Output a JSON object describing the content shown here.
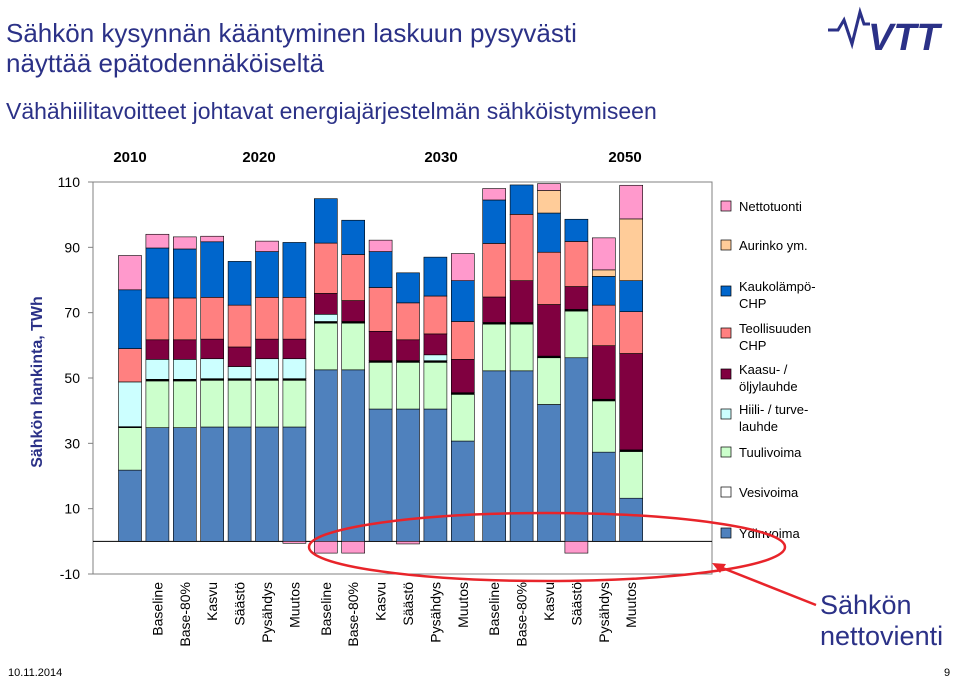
{
  "slide": {
    "title_line1": "Sähkön kysynnän kääntyminen laskuun pysyvästi",
    "title_line2": "näyttää epätodennäköiseltä",
    "subtitle": "Vähähiilitavoitteet johtavat energiajärjestelmän sähköistymiseen",
    "logo_text": "VTT",
    "date": "10.11.2014",
    "page_number": "9",
    "callout_line1": "Sähkön",
    "callout_line2": "nettovienti",
    "accent_color": "#2b3187",
    "callout_color": "#e8242a"
  },
  "chart_data": {
    "type": "bar",
    "stacked": true,
    "ylabel": "Sähkön hankinta, TWh",
    "ylim": [
      -10,
      110
    ],
    "yticks": [
      -10,
      10,
      30,
      50,
      70,
      90,
      110
    ],
    "year_labels": [
      "2010",
      "2020",
      "2030",
      "2050"
    ],
    "categories": [
      "",
      "Baseline",
      "Base-80%",
      "Kasvu",
      "Säästö",
      "Pysähdys",
      "Muutos",
      "Baseline",
      "Base-80%",
      "Kasvu",
      "Säästö",
      "Pysähdys",
      "Muutos",
      "Baseline",
      "Base-80%",
      "Kasvu",
      "Säästö",
      "Pysähdys",
      "Muutos"
    ],
    "series": [
      {
        "name": "Ydinvoima",
        "color": "#4f81bd",
        "values": [
          21.8,
          34.8,
          34.8,
          35.0,
          35.0,
          35.0,
          35.0,
          52.5,
          52.5,
          40.5,
          40.5,
          40.5,
          30.7,
          52.2,
          52.2,
          41.9,
          56.2,
          27.3,
          13.2
        ]
      },
      {
        "name": "Vesivoima",
        "color": "#ccffcc",
        "values": [
          13.0,
          14.3,
          14.3,
          14.3,
          14.3,
          14.3,
          14.3,
          14.3,
          14.3,
          14.3,
          14.3,
          14.3,
          14.3,
          14.3,
          14.3,
          14.3,
          14.3,
          15.7,
          14.3
        ]
      },
      {
        "name": "Tuulivoima",
        "color": "#000000",
        "values": [
          0.3,
          0.5,
          0.5,
          0.5,
          0.5,
          0.5,
          0.5,
          0.5,
          0.5,
          0.5,
          0.5,
          0.5,
          0.5,
          0.5,
          0.5,
          0.5,
          0.5,
          0.5,
          0.5
        ]
      },
      {
        "name": "Hiili- / turvelauhde",
        "color": "#ccffff",
        "values": [
          13.7,
          6.1,
          6.1,
          6.1,
          3.7,
          6.1,
          6.1,
          2.2,
          0.0,
          0.0,
          0.0,
          1.8,
          0.0,
          0.0,
          0.0,
          0.0,
          0.0,
          0.0,
          0.0
        ]
      },
      {
        "name": "Kaasu- / öljylauhde",
        "color": "#800040",
        "values": [
          0.0,
          6.0,
          6.0,
          6.0,
          6.0,
          6.0,
          6.0,
          6.4,
          6.4,
          9.0,
          6.4,
          6.4,
          10.2,
          7.8,
          12.8,
          15.8,
          7.0,
          16.4,
          29.5
        ]
      },
      {
        "name": "Teollisuuden CHP",
        "color": "#ff8080",
        "values": [
          10.2,
          12.8,
          12.8,
          12.8,
          12.8,
          12.8,
          12.8,
          15.4,
          14.1,
          13.4,
          11.3,
          11.6,
          11.6,
          16.4,
          20.3,
          16.0,
          13.8,
          12.4,
          12.8
        ]
      },
      {
        "name": "Kaukolämpö-CHP",
        "color": "#0066cc",
        "values": [
          18.0,
          15.3,
          15.0,
          17.0,
          13.4,
          14.0,
          16.8,
          13.6,
          10.5,
          11.0,
          9.2,
          11.9,
          12.5,
          13.3,
          9.0,
          12.0,
          6.8,
          8.8,
          9.5
        ]
      },
      {
        "name": "Aurinko ym.",
        "color": "#ffcc99",
        "values": [
          0,
          0,
          0,
          0,
          0,
          0,
          0,
          0,
          0,
          0,
          0,
          0,
          0,
          0,
          0,
          6.9,
          0,
          2.0,
          18.9
        ]
      },
      {
        "name": "Nettotuonti",
        "color": "#ff99cc",
        "values": [
          10.5,
          4.2,
          3.7,
          1.7,
          0,
          3.2,
          0,
          0,
          0,
          3.5,
          0,
          0,
          8.3,
          3.5,
          0,
          2.1,
          0,
          9.8,
          10.3
        ]
      }
    ],
    "series_bottom_line": {
      "name": "Ydinvoima outline",
      "color": "#000000"
    },
    "net_export": {
      "name": "Sähkön nettovienti",
      "color": "#ff99cc",
      "values": [
        0,
        0,
        0,
        0,
        0,
        0,
        -0.6,
        -3.6,
        -3.6,
        0,
        -0.8,
        0,
        0,
        0,
        0,
        0,
        -3.6,
        0,
        0
      ]
    },
    "legend": [
      "Nettotuonti",
      "Aurinko ym.",
      "Kaukolämpö-CHP",
      "Teollisuuden CHP",
      "Kaasu- / öljylauhde",
      "Hiili- / turvelauhde",
      "Tuulivoima",
      "Vesivoima",
      "Ydinvoima"
    ],
    "legend_lines": [
      [
        "Nettotuonti"
      ],
      [
        "Aurinko ym."
      ],
      [
        "Kaukolämpö-",
        "CHP"
      ],
      [
        "Teollisuuden",
        "CHP"
      ],
      [
        "Kaasu- /",
        "öljylauhde"
      ],
      [
        "Hiili- / turve-",
        "lauhde"
      ],
      [
        "Tuulivoima"
      ],
      [
        "Vesivoima"
      ],
      [
        "Ydinvoima"
      ]
    ],
    "legend_colors": [
      "#ff99cc",
      "#ffcc99",
      "#0066cc",
      "#ff8080",
      "#800040",
      "#ccffff",
      "#ccffcc",
      "#ffffff",
      "#4f81bd"
    ],
    "legend_placement": "right",
    "grid": false
  }
}
